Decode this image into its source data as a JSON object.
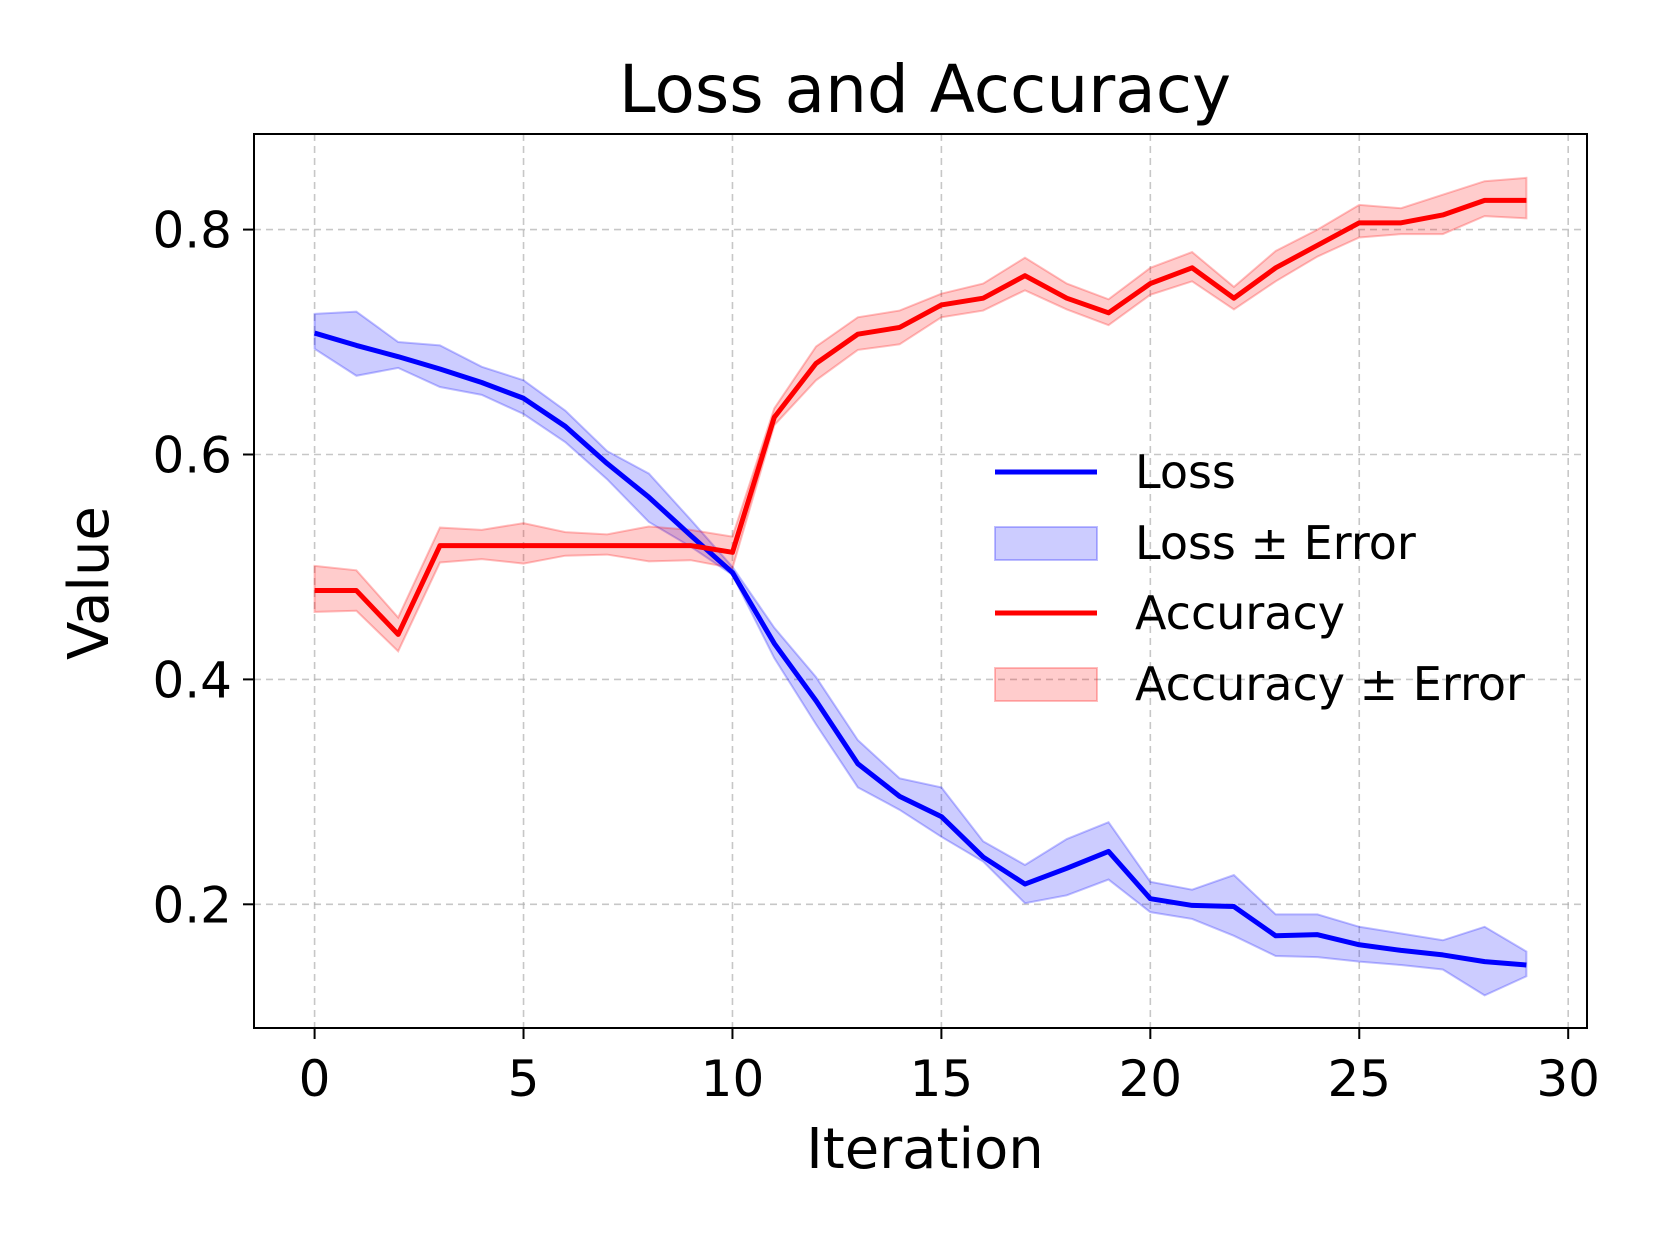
{
  "chart_data": {
    "type": "line",
    "title": "Loss and Accuracy",
    "xlabel": "Iteration",
    "ylabel": "Value",
    "xlim": [
      -1.45,
      30.45
    ],
    "ylim": [
      0.09,
      0.885
    ],
    "xticks": [
      0,
      5,
      10,
      15,
      20,
      25,
      30
    ],
    "yticks": [
      0.2,
      0.4,
      0.6,
      0.8
    ],
    "xtick_labels": [
      "0",
      "5",
      "10",
      "15",
      "20",
      "25",
      "30"
    ],
    "ytick_labels": [
      "0.2",
      "0.4",
      "0.6",
      "0.8"
    ],
    "grid": true,
    "legend_position": "center-right",
    "x": [
      0,
      1,
      2,
      3,
      4,
      5,
      6,
      7,
      8,
      9,
      10,
      11,
      12,
      13,
      14,
      15,
      16,
      17,
      18,
      19,
      20,
      21,
      22,
      23,
      24,
      25,
      26,
      27,
      28,
      29
    ],
    "series": [
      {
        "name": "Loss",
        "band_name": "Loss ± Error",
        "color": "#0000ff",
        "values": [
          0.708,
          0.697,
          0.687,
          0.676,
          0.664,
          0.65,
          0.625,
          0.592,
          0.562,
          0.528,
          0.495,
          0.432,
          0.381,
          0.325,
          0.296,
          0.278,
          0.242,
          0.218,
          0.232,
          0.247,
          0.205,
          0.199,
          0.198,
          0.172,
          0.173,
          0.164,
          0.159,
          0.155,
          0.149,
          0.146
        ],
        "lower": [
          0.694,
          0.67,
          0.677,
          0.66,
          0.653,
          0.636,
          0.611,
          0.578,
          0.54,
          0.518,
          0.493,
          0.419,
          0.36,
          0.304,
          0.284,
          0.26,
          0.238,
          0.201,
          0.208,
          0.222,
          0.193,
          0.187,
          0.172,
          0.154,
          0.153,
          0.149,
          0.146,
          0.142,
          0.119,
          0.136
        ],
        "upper": [
          0.725,
          0.727,
          0.7,
          0.697,
          0.678,
          0.666,
          0.639,
          0.603,
          0.583,
          0.542,
          0.5,
          0.446,
          0.402,
          0.346,
          0.312,
          0.304,
          0.256,
          0.235,
          0.258,
          0.273,
          0.22,
          0.213,
          0.226,
          0.191,
          0.191,
          0.18,
          0.174,
          0.168,
          0.18,
          0.158
        ]
      },
      {
        "name": "Accuracy",
        "band_name": "Accuracy ± Error",
        "color": "#ff0000",
        "values": [
          0.479,
          0.479,
          0.44,
          0.519,
          0.519,
          0.519,
          0.519,
          0.519,
          0.519,
          0.519,
          0.513,
          0.633,
          0.681,
          0.707,
          0.713,
          0.733,
          0.739,
          0.759,
          0.739,
          0.726,
          0.752,
          0.766,
          0.739,
          0.766,
          0.786,
          0.806,
          0.806,
          0.813,
          0.826,
          0.826
        ],
        "lower": [
          0.46,
          0.461,
          0.425,
          0.504,
          0.507,
          0.503,
          0.51,
          0.511,
          0.505,
          0.506,
          0.499,
          0.626,
          0.666,
          0.693,
          0.698,
          0.722,
          0.728,
          0.746,
          0.729,
          0.715,
          0.742,
          0.754,
          0.729,
          0.754,
          0.776,
          0.793,
          0.796,
          0.796,
          0.812,
          0.81
        ],
        "upper": [
          0.501,
          0.497,
          0.455,
          0.535,
          0.533,
          0.539,
          0.531,
          0.529,
          0.536,
          0.533,
          0.527,
          0.641,
          0.696,
          0.722,
          0.728,
          0.743,
          0.752,
          0.775,
          0.752,
          0.738,
          0.766,
          0.78,
          0.749,
          0.781,
          0.8,
          0.822,
          0.819,
          0.831,
          0.843,
          0.846
        ]
      }
    ]
  }
}
